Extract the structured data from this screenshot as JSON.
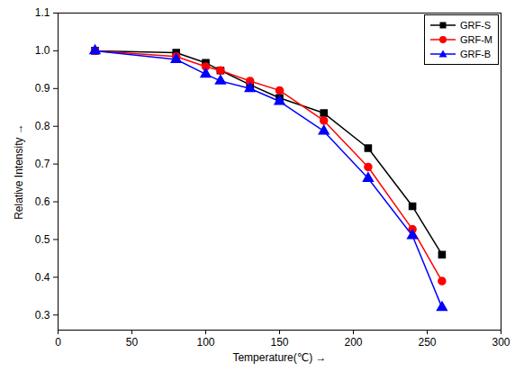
{
  "chart_data": {
    "type": "line",
    "x_label": "Temperature(℃)",
    "y_label": "Relative Intensity",
    "x": [
      25,
      80,
      100,
      110,
      130,
      150,
      180,
      210,
      240,
      260
    ],
    "series": [
      {
        "name": "GRF-S",
        "color": "#000000",
        "marker": "square",
        "line_style": "solid",
        "values": [
          1.0,
          0.995,
          0.968,
          0.948,
          0.91,
          0.875,
          0.835,
          0.742,
          0.588,
          0.46
        ]
      },
      {
        "name": "GRF-M",
        "color": "#ff0000",
        "marker": "circle",
        "line_style": "solid",
        "values": [
          1.0,
          0.985,
          0.958,
          0.948,
          0.92,
          0.895,
          0.815,
          0.692,
          0.527,
          0.39
        ]
      },
      {
        "name": "GRF-B",
        "color": "#0000ff",
        "marker": "triangle",
        "line_style": "solid",
        "values": [
          1.0,
          0.977,
          0.938,
          0.92,
          0.9,
          0.866,
          0.787,
          0.662,
          0.51,
          0.32
        ]
      }
    ],
    "xlim": [
      0,
      300
    ],
    "xticks": [
      0,
      50,
      100,
      150,
      200,
      250,
      300
    ],
    "ylim": [
      0.26,
      1.1
    ],
    "yticks": [
      0.3,
      0.4,
      0.5,
      0.6,
      0.7,
      0.8,
      0.9,
      {
        "value": 1,
        "label": "1.0"
      },
      1.1
    ],
    "legend": "top-right",
    "grid": false
  }
}
